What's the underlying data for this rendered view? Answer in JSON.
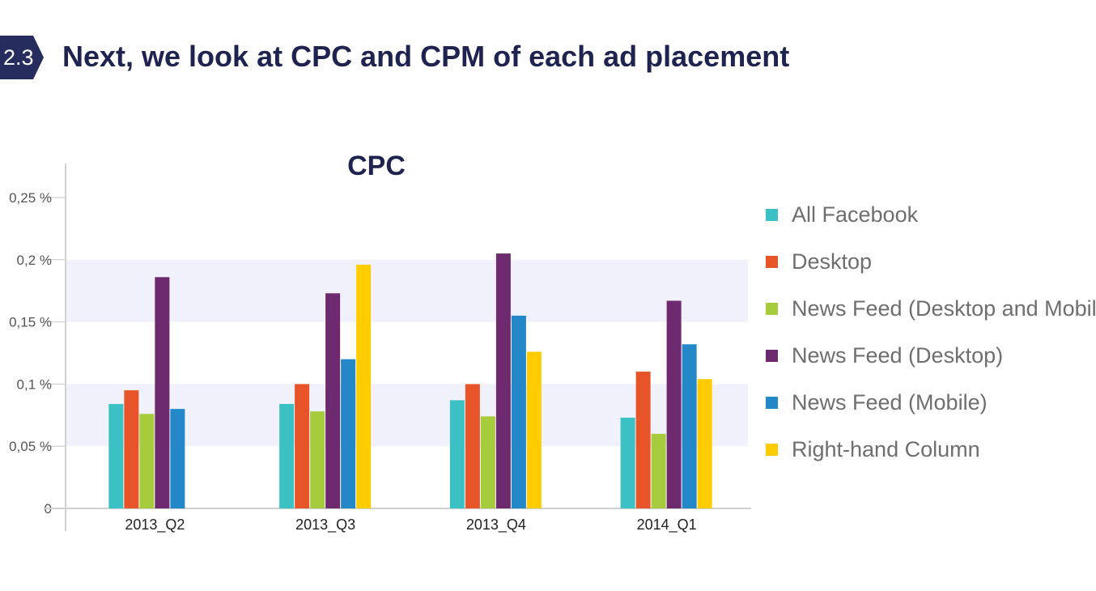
{
  "header": {
    "section_number": "2.3",
    "title": "Next, we look at CPC and CPM of each ad placement",
    "badge_color": "#262d5e"
  },
  "chart_data": {
    "type": "bar",
    "title": "CPC",
    "xlabel": "",
    "ylabel": "",
    "categories": [
      "2013_Q2",
      "2013_Q3",
      "2013_Q4",
      "2014_Q1"
    ],
    "yticks": [
      0,
      0.05,
      0.1,
      0.15,
      0.2,
      0.25
    ],
    "ytick_labels": [
      "0",
      "0,05 %",
      "0,1 %",
      "0,15 %",
      "0,2 %",
      "0,25 %"
    ],
    "ylim": [
      0,
      0.25
    ],
    "grid": "alternating horizontal bands",
    "legend_position": "right",
    "series": [
      {
        "name": "All Facebook",
        "color": "#3bc0c3",
        "values": [
          0.084,
          0.084,
          0.087,
          0.073
        ]
      },
      {
        "name": "Desktop",
        "color": "#e8542a",
        "values": [
          0.095,
          0.1,
          0.1,
          0.11
        ]
      },
      {
        "name": "News Feed (Desktop and Mobile)",
        "color": "#a6cb3c",
        "values": [
          0.076,
          0.078,
          0.074,
          0.06
        ]
      },
      {
        "name": "News Feed (Desktop)",
        "color": "#6e2a6e",
        "values": [
          0.186,
          0.173,
          0.205,
          0.167
        ]
      },
      {
        "name": "News Feed (Mobile)",
        "color": "#2488c8",
        "values": [
          0.08,
          0.12,
          0.155,
          0.132
        ]
      },
      {
        "name": "Right-hand Column",
        "color": "#ffcc00",
        "values": [
          null,
          0.196,
          0.126,
          0.104
        ]
      }
    ]
  }
}
